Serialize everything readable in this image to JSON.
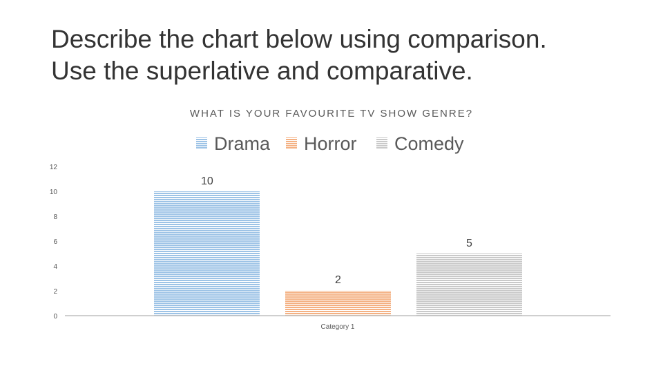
{
  "slide": {
    "title_line1": "Describe the chart below using comparison.",
    "title_line2": "Use the superlative and comparative."
  },
  "chart_data": {
    "type": "bar",
    "title": "WHAT IS YOUR FAVOURITE TV SHOW GENRE?",
    "categories": [
      "Category 1"
    ],
    "series": [
      {
        "name": "Drama",
        "values": [
          10
        ],
        "color": "#9dc3e6"
      },
      {
        "name": "Horror",
        "values": [
          2
        ],
        "color": "#f4b183"
      },
      {
        "name": "Comedy",
        "values": [
          5
        ],
        "color": "#c9c9c9"
      }
    ],
    "ylim": [
      0,
      12
    ],
    "yticks": [
      "0",
      "2",
      "4",
      "6",
      "8",
      "10",
      "12"
    ],
    "legend_position": "top",
    "data_labels": true,
    "grid": false,
    "xlabel": "",
    "ylabel": ""
  }
}
